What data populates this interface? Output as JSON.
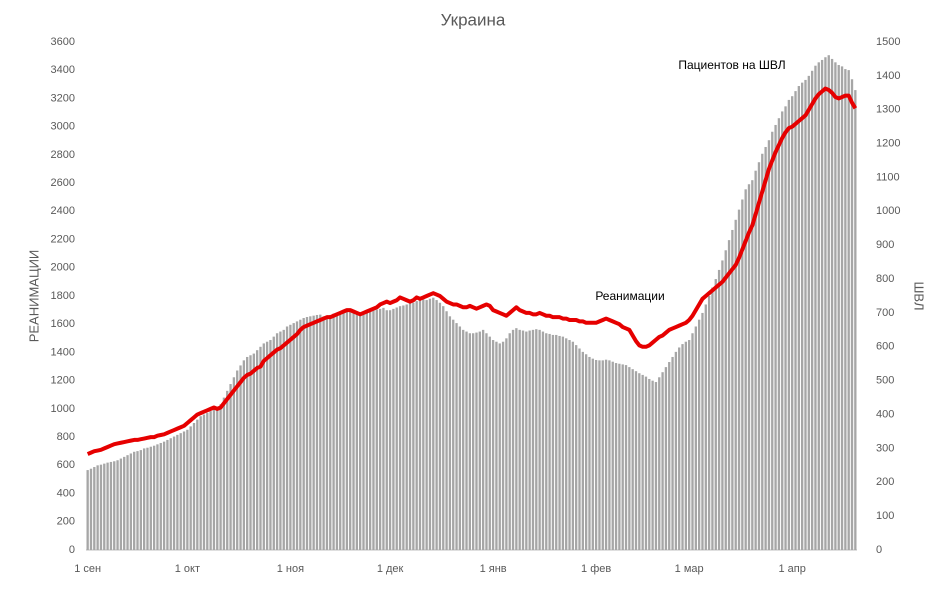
{
  "chart_data": {
    "type": "bar",
    "title": "Украина",
    "y_label": "РЕАНИМАЦИИ",
    "y2_label": "ШВЛ",
    "categories": [
      "1 сен",
      null,
      null,
      null,
      null,
      null,
      null,
      null,
      null,
      null,
      null,
      null,
      null,
      null,
      null,
      null,
      null,
      null,
      null,
      null,
      null,
      null,
      null,
      null,
      null,
      null,
      null,
      null,
      null,
      null,
      "1 окт",
      null,
      null,
      null,
      null,
      null,
      null,
      null,
      null,
      null,
      null,
      null,
      null,
      null,
      null,
      null,
      null,
      null,
      null,
      null,
      null,
      null,
      null,
      null,
      null,
      null,
      null,
      null,
      null,
      null,
      null,
      "1 ноя",
      null,
      null,
      null,
      null,
      null,
      null,
      null,
      null,
      null,
      null,
      null,
      null,
      null,
      null,
      null,
      null,
      null,
      null,
      null,
      null,
      null,
      null,
      null,
      null,
      null,
      null,
      null,
      null,
      null,
      "1 дек",
      null,
      null,
      null,
      null,
      null,
      null,
      null,
      null,
      null,
      null,
      null,
      null,
      null,
      null,
      null,
      null,
      null,
      null,
      null,
      null,
      null,
      null,
      null,
      null,
      null,
      null,
      null,
      null,
      null,
      null,
      "1 янв",
      null,
      null,
      null,
      null,
      null,
      null,
      null,
      null,
      null,
      null,
      null,
      null,
      null,
      null,
      null,
      null,
      null,
      null,
      null,
      null,
      null,
      null,
      null,
      null,
      null,
      null,
      null,
      null,
      null,
      null,
      "1 фев",
      null,
      null,
      null,
      null,
      null,
      null,
      null,
      null,
      null,
      null,
      null,
      null,
      null,
      null,
      null,
      null,
      null,
      null,
      null,
      null,
      null,
      null,
      null,
      null,
      null,
      null,
      null,
      "1 мар",
      null,
      null,
      null,
      null,
      null,
      null,
      null,
      null,
      null,
      null,
      null,
      null,
      null,
      null,
      null,
      null,
      null,
      null,
      null,
      null,
      null,
      null,
      null,
      null,
      null,
      null,
      null,
      null,
      null,
      null,
      "1 апр",
      null,
      null,
      null,
      null,
      null,
      null,
      null,
      null,
      null,
      null,
      null,
      null,
      null,
      null,
      null,
      null,
      null,
      null,
      null
    ],
    "series": [
      {
        "name": "Пациентов на ШВЛ",
        "type": "bar",
        "axis": "y2",
        "color": "#a6a6a6",
        "values": [
          236,
          240,
          245,
          250,
          252,
          255,
          258,
          260,
          262,
          265,
          270,
          275,
          280,
          285,
          290,
          292,
          295,
          300,
          302,
          305,
          308,
          312,
          316,
          320,
          325,
          330,
          335,
          340,
          345,
          350,
          355,
          365,
          375,
          385,
          395,
          400,
          405,
          410,
          415,
          420,
          430,
          450,
          470,
          490,
          510,
          530,
          545,
          560,
          570,
          575,
          580,
          590,
          600,
          610,
          615,
          620,
          630,
          640,
          645,
          650,
          660,
          665,
          670,
          675,
          680,
          685,
          688,
          690,
          692,
          694,
          695,
          690,
          688,
          694,
          698,
          700,
          702,
          705,
          708,
          710,
          705,
          700,
          698,
          700,
          704,
          706,
          708,
          710,
          712,
          715,
          708,
          708,
          712,
          716,
          720,
          722,
          725,
          728,
          730,
          735,
          738,
          740,
          738,
          742,
          745,
          738,
          730,
          720,
          705,
          690,
          680,
          670,
          660,
          650,
          645,
          640,
          640,
          642,
          645,
          650,
          640,
          630,
          620,
          615,
          610,
          615,
          625,
          640,
          650,
          655,
          650,
          648,
          645,
          648,
          650,
          652,
          650,
          645,
          640,
          638,
          635,
          635,
          632,
          630,
          625,
          620,
          615,
          605,
          595,
          585,
          578,
          570,
          565,
          561,
          560,
          560,
          562,
          560,
          556,
          552,
          550,
          548,
          546,
          540,
          534,
          528,
          522,
          517,
          512,
          505,
          500,
          496,
          510,
          525,
          540,
          555,
          570,
          585,
          598,
          608,
          615,
          620,
          640,
          660,
          680,
          700,
          725,
          750,
          775,
          800,
          827,
          855,
          885,
          915,
          945,
          975,
          1005,
          1035,
          1065,
          1080,
          1092,
          1120,
          1145,
          1170,
          1190,
          1210,
          1235,
          1255,
          1275,
          1295,
          1310,
          1329,
          1340,
          1355,
          1370,
          1380,
          1388,
          1400,
          1415,
          1430,
          1440,
          1447,
          1455,
          1461,
          1450,
          1440,
          1432,
          1428,
          1420,
          1417,
          1390,
          1358
        ]
      },
      {
        "name": "Реанимации",
        "type": "line",
        "color": "#e60000",
        "values": [
          680,
          690,
          700,
          705,
          710,
          720,
          730,
          740,
          750,
          755,
          760,
          765,
          770,
          775,
          780,
          780,
          785,
          790,
          795,
          800,
          800,
          810,
          815,
          820,
          830,
          840,
          850,
          860,
          870,
          880,
          900,
          920,
          940,
          960,
          970,
          980,
          990,
          1000,
          1010,
          1000,
          1010,
          1040,
          1070,
          1100,
          1130,
          1160,
          1190,
          1220,
          1240,
          1250,
          1270,
          1290,
          1300,
          1340,
          1360,
          1380,
          1400,
          1420,
          1430,
          1450,
          1470,
          1490,
          1510,
          1530,
          1560,
          1580,
          1590,
          1600,
          1610,
          1620,
          1630,
          1640,
          1650,
          1650,
          1660,
          1670,
          1680,
          1690,
          1700,
          1700,
          1690,
          1680,
          1670,
          1680,
          1690,
          1700,
          1710,
          1720,
          1740,
          1750,
          1760,
          1750,
          1760,
          1770,
          1790,
          1780,
          1770,
          1760,
          1770,
          1790,
          1780,
          1790,
          1800,
          1810,
          1820,
          1810,
          1800,
          1780,
          1760,
          1750,
          1740,
          1740,
          1730,
          1720,
          1720,
          1730,
          1720,
          1710,
          1720,
          1730,
          1740,
          1730,
          1700,
          1690,
          1680,
          1670,
          1660,
          1680,
          1700,
          1720,
          1700,
          1690,
          1680,
          1680,
          1670,
          1670,
          1680,
          1670,
          1660,
          1660,
          1650,
          1650,
          1650,
          1640,
          1640,
          1630,
          1630,
          1630,
          1620,
          1620,
          1610,
          1610,
          1610,
          1610,
          1620,
          1630,
          1640,
          1630,
          1620,
          1610,
          1600,
          1580,
          1570,
          1560,
          1520,
          1480,
          1450,
          1440,
          1440,
          1450,
          1470,
          1490,
          1510,
          1520,
          1540,
          1560,
          1570,
          1580,
          1590,
          1600,
          1610,
          1630,
          1660,
          1700,
          1740,
          1780,
          1800,
          1820,
          1840,
          1860,
          1880,
          1900,
          1930,
          1960,
          1990,
          2020,
          2070,
          2130,
          2190,
          2250,
          2300,
          2380,
          2460,
          2540,
          2620,
          2700,
          2760,
          2820,
          2870,
          2920,
          2960,
          2990,
          3000,
          3020,
          3040,
          3060,
          3080,
          3120,
          3160,
          3200,
          3230,
          3250,
          3270,
          3260,
          3240,
          3210,
          3200,
          3210,
          3220,
          3220,
          3170,
          3130
        ]
      }
    ],
    "ylim": [
      0,
      3600
    ],
    "yticks": [
      0,
      200,
      400,
      600,
      800,
      1000,
      1200,
      1400,
      1600,
      1800,
      2000,
      2200,
      2400,
      2600,
      2800,
      3000,
      3200,
      3400,
      3600
    ],
    "y2lim": [
      0,
      1500
    ],
    "y2ticks": [
      0,
      100,
      200,
      300,
      400,
      500,
      600,
      700,
      800,
      900,
      1000,
      1100,
      1200,
      1300,
      1400,
      1500
    ],
    "grid": false
  }
}
